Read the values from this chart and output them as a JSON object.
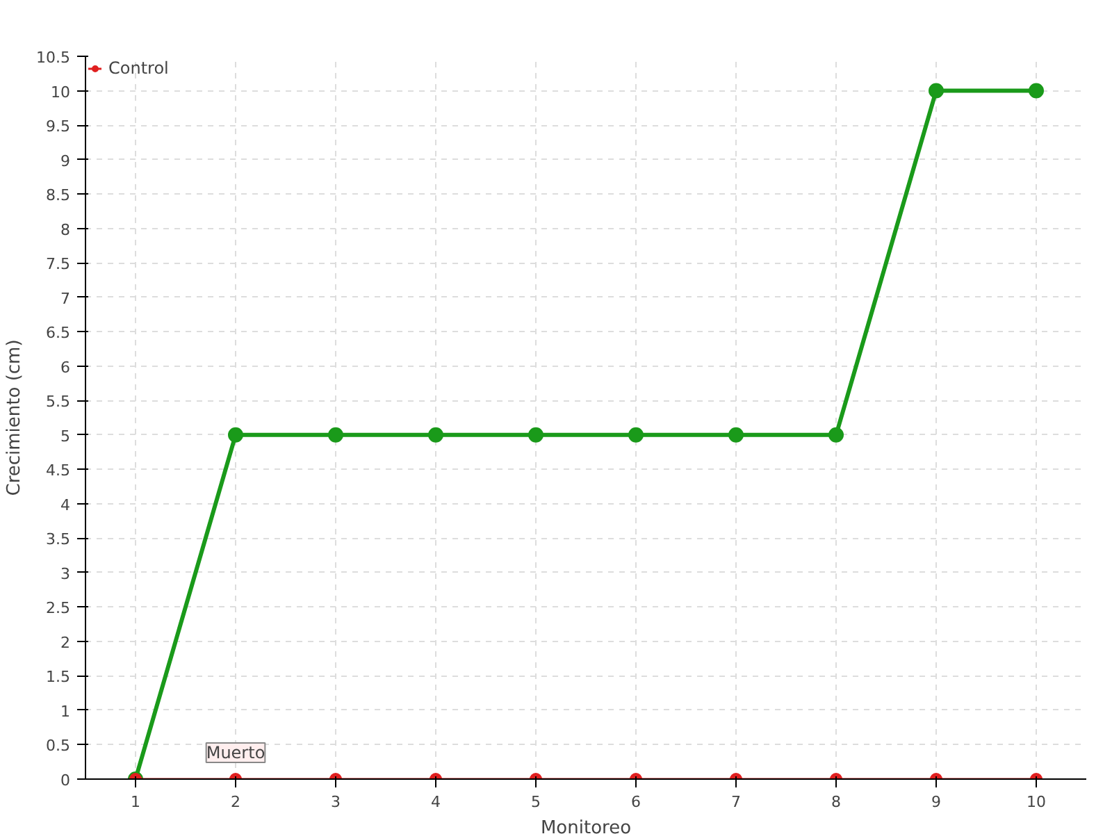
{
  "chart_data": {
    "type": "line",
    "xlabel": "Monitoreo",
    "ylabel": "Crecimiento (cm)",
    "categories": [
      "1",
      "2",
      "3",
      "4",
      "5",
      "6",
      "7",
      "8",
      "9",
      "10"
    ],
    "series": [
      {
        "color": "#1a9a1a",
        "values": [
          0,
          5,
          5,
          5,
          5,
          5,
          5,
          5,
          10,
          10
        ]
      },
      {
        "name": "Control",
        "color": "#e02020",
        "values": [
          0,
          0,
          0,
          0,
          0,
          0,
          0,
          0,
          0,
          0
        ]
      }
    ],
    "ylim": [
      0,
      10.5
    ],
    "yticks": [
      0,
      0.5,
      1,
      1.5,
      2,
      2.5,
      3,
      3.5,
      4,
      4.5,
      5,
      5.5,
      6,
      6.5,
      7,
      7.5,
      8,
      8.5,
      9,
      9.5,
      10,
      10.5
    ],
    "annotations": [
      {
        "text": "Muerto",
        "x": "2",
        "y": 0
      }
    ],
    "grid": true,
    "legend": "top left",
    "marker": "circle",
    "line_style": "solid"
  }
}
